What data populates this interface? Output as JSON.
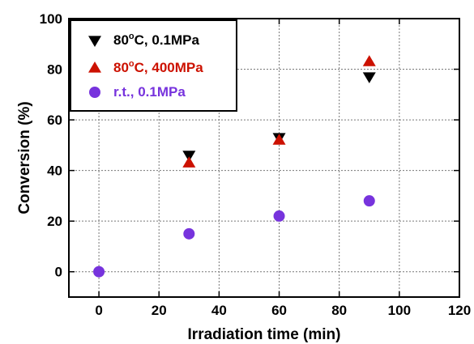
{
  "chart_data": {
    "type": "scatter",
    "xlabel": "Irradiation time (min)",
    "ylabel": "Conversion (%)",
    "xlim": [
      -10,
      120
    ],
    "ylim": [
      -10,
      100
    ],
    "xticks": [
      0,
      20,
      40,
      60,
      80,
      100,
      120
    ],
    "yticks": [
      0,
      20,
      40,
      60,
      80,
      100
    ],
    "xtick_labels": [
      "0",
      "20",
      "40",
      "60",
      "80",
      "100",
      "120"
    ],
    "ytick_labels": [
      "0",
      "20",
      "40",
      "60",
      "80",
      "100"
    ],
    "grid": true,
    "legend_position": "top-left",
    "series": [
      {
        "label_main": "80",
        "label_sup": "o",
        "label_rest": "C, 0.1MPa",
        "marker": "triangle-down",
        "color": "#000000",
        "x": [
          30,
          60,
          90
        ],
        "y": [
          46,
          53,
          77
        ]
      },
      {
        "label_main": "80",
        "label_sup": "o",
        "label_rest": "C, 400MPa",
        "marker": "triangle-up",
        "color": "#cc1100",
        "x": [
          30,
          60,
          90
        ],
        "y": [
          43,
          52,
          83
        ]
      },
      {
        "label_main": "r.t., 0.1MPa",
        "label_sup": "",
        "label_rest": "",
        "marker": "circle",
        "color": "#7733dd",
        "x": [
          0,
          30,
          60,
          90
        ],
        "y": [
          0,
          15,
          22,
          28
        ]
      }
    ]
  }
}
